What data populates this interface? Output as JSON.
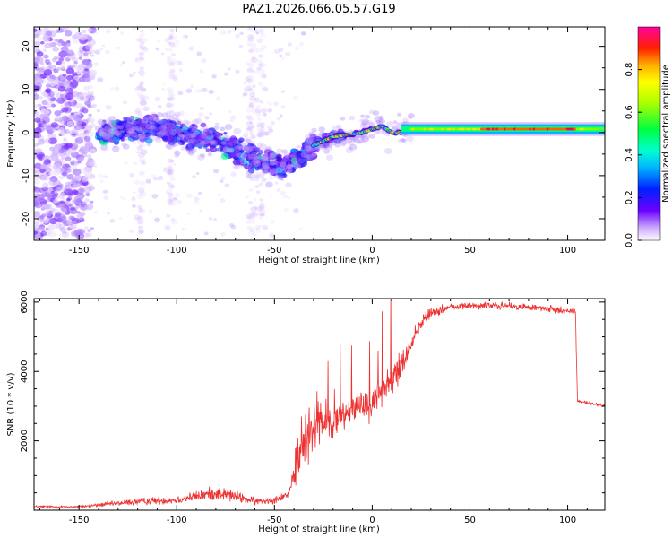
{
  "chart_data": [
    {
      "type": "heatmap",
      "title": "PAZ1.2026.066.05.57.G19",
      "xlabel": "Height of straight line (km)",
      "ylabel": "Frequency (Hz)",
      "xlim": [
        -173,
        119
      ],
      "ylim": [
        -25,
        24.5
      ],
      "xticks": [
        -150,
        -100,
        -50,
        0,
        50,
        100
      ],
      "yticks": [
        -20,
        -10,
        0,
        10,
        20
      ],
      "colorbar": {
        "label": "Normalized spectral amplitude",
        "range": [
          0,
          1
        ],
        "ticks": [
          0.0,
          0.2,
          0.4,
          0.6,
          0.8
        ]
      },
      "features": {
        "noise_region_x": [
          -173,
          -145
        ],
        "noisy_band_center_hz": [
          [
            -140,
            0
          ],
          [
            -110,
            1
          ],
          [
            -80,
            -2
          ],
          [
            -60,
            -6
          ],
          [
            -45,
            -8
          ],
          [
            -30,
            -3
          ],
          [
            -20,
            -1
          ],
          [
            -5,
            0
          ],
          [
            5,
            1.5
          ],
          [
            10,
            0
          ],
          [
            119,
            0.8
          ]
        ],
        "strong_steady_tone_x": [
          20,
          119
        ],
        "strong_steady_tone_hz": 0.8
      }
    },
    {
      "type": "line",
      "title": "",
      "xlabel": "Height of straight line (km)",
      "ylabel": "SNR (10 * v/v)",
      "xlim": [
        -173,
        119
      ],
      "ylim": [
        0,
        6100
      ],
      "xticks": [
        -150,
        -100,
        -50,
        0,
        50,
        100
      ],
      "yticks": [
        2000,
        4000,
        6000
      ],
      "series": [
        {
          "name": "SNR",
          "color": "#ee3030",
          "envelope": [
            [
              -173,
              100,
              60
            ],
            [
              -150,
              100,
              60
            ],
            [
              -140,
              150,
              80
            ],
            [
              -120,
              250,
              150
            ],
            [
              -100,
              300,
              180
            ],
            [
              -90,
              400,
              220
            ],
            [
              -80,
              500,
              300
            ],
            [
              -70,
              400,
              250
            ],
            [
              -60,
              250,
              150
            ],
            [
              -50,
              300,
              150
            ],
            [
              -42,
              500,
              250
            ],
            [
              -38,
              1500,
              1200
            ],
            [
              -35,
              2000,
              1500
            ],
            [
              -30,
              2500,
              1200
            ],
            [
              -25,
              2600,
              900
            ],
            [
              -20,
              2500,
              700
            ],
            [
              -10,
              3000,
              700
            ],
            [
              0,
              3100,
              700
            ],
            [
              5,
              3500,
              700
            ],
            [
              10,
              3700,
              800
            ],
            [
              15,
              4200,
              600
            ],
            [
              20,
              4800,
              400
            ],
            [
              25,
              5400,
              300
            ],
            [
              30,
              5700,
              200
            ],
            [
              40,
              5850,
              150
            ],
            [
              50,
              5900,
              150
            ],
            [
              60,
              5900,
              150
            ],
            [
              70,
              5880,
              150
            ],
            [
              80,
              5850,
              150
            ],
            [
              90,
              5800,
              150
            ],
            [
              100,
              5750,
              150
            ],
            [
              104,
              5700,
              150
            ],
            [
              105,
              3150,
              60
            ],
            [
              110,
              3100,
              60
            ],
            [
              119,
              3000,
              60
            ]
          ]
        }
      ]
    }
  ]
}
